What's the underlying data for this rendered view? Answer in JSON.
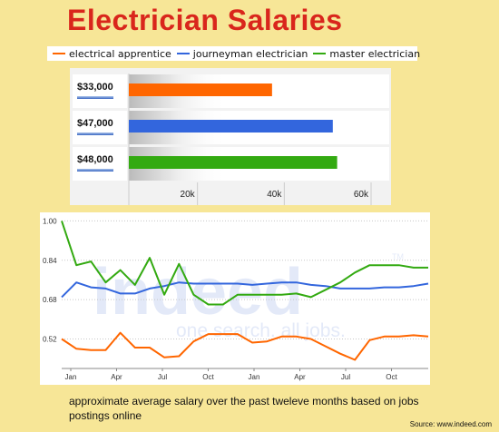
{
  "title": "Electrician Salaries",
  "caption": "approximate average salary over the past tweleve months based on jobs postings online",
  "source": "Source: www.indeed.com",
  "watermark": {
    "brand": "indeed",
    "tagline": "one search. all jobs.",
    "tm": "TM"
  },
  "legend": [
    {
      "name": "electrical apprentice",
      "color": "#ff6600"
    },
    {
      "name": "journeyman electrician",
      "color": "#3366dd"
    },
    {
      "name": "master electrician",
      "color": "#33aa11"
    }
  ],
  "chart_data": [
    {
      "type": "bar",
      "orientation": "horizontal",
      "categories": [
        "$33,000",
        "$47,000",
        "$48,000"
      ],
      "values": [
        33000,
        47000,
        48000
      ],
      "colors": [
        "#ff6600",
        "#3366dd",
        "#33aa11"
      ],
      "xticks": [
        "20k",
        "40k",
        "60k"
      ],
      "xlim": [
        0,
        60000
      ],
      "grid": true
    },
    {
      "type": "line",
      "xticks": [
        "Jan",
        "Apr",
        "Jul",
        "Oct",
        "Jan",
        "Apr",
        "Jul",
        "Oct"
      ],
      "yticks": [
        "1.00",
        "0.84",
        "0.68",
        "0.52"
      ],
      "ylim": [
        0.4,
        1.02
      ],
      "grid": true,
      "series": [
        {
          "name": "electrical apprentice",
          "color": "#ff6600",
          "values": [
            0.52,
            0.48,
            0.475,
            0.475,
            0.545,
            0.485,
            0.485,
            0.445,
            0.45,
            0.51,
            0.54,
            0.54,
            0.54,
            0.505,
            0.51,
            0.53,
            0.53,
            0.52,
            0.49,
            0.46,
            0.435,
            0.515,
            0.53,
            0.53,
            0.535,
            0.53
          ]
        },
        {
          "name": "journeyman electrician",
          "color": "#3366dd",
          "values": [
            0.69,
            0.75,
            0.73,
            0.725,
            0.705,
            0.705,
            0.725,
            0.735,
            0.75,
            0.745,
            0.745,
            0.745,
            0.745,
            0.74,
            0.745,
            0.75,
            0.75,
            0.74,
            0.735,
            0.725,
            0.725,
            0.725,
            0.73,
            0.73,
            0.735,
            0.745
          ]
        },
        {
          "name": "master electrician",
          "color": "#33aa11",
          "values": [
            1.0,
            0.82,
            0.835,
            0.75,
            0.8,
            0.74,
            0.85,
            0.7,
            0.825,
            0.7,
            0.66,
            0.66,
            0.7,
            0.7,
            0.7,
            0.7,
            0.705,
            0.69,
            0.72,
            0.75,
            0.79,
            0.82,
            0.82,
            0.82,
            0.81,
            0.81
          ]
        }
      ]
    }
  ]
}
